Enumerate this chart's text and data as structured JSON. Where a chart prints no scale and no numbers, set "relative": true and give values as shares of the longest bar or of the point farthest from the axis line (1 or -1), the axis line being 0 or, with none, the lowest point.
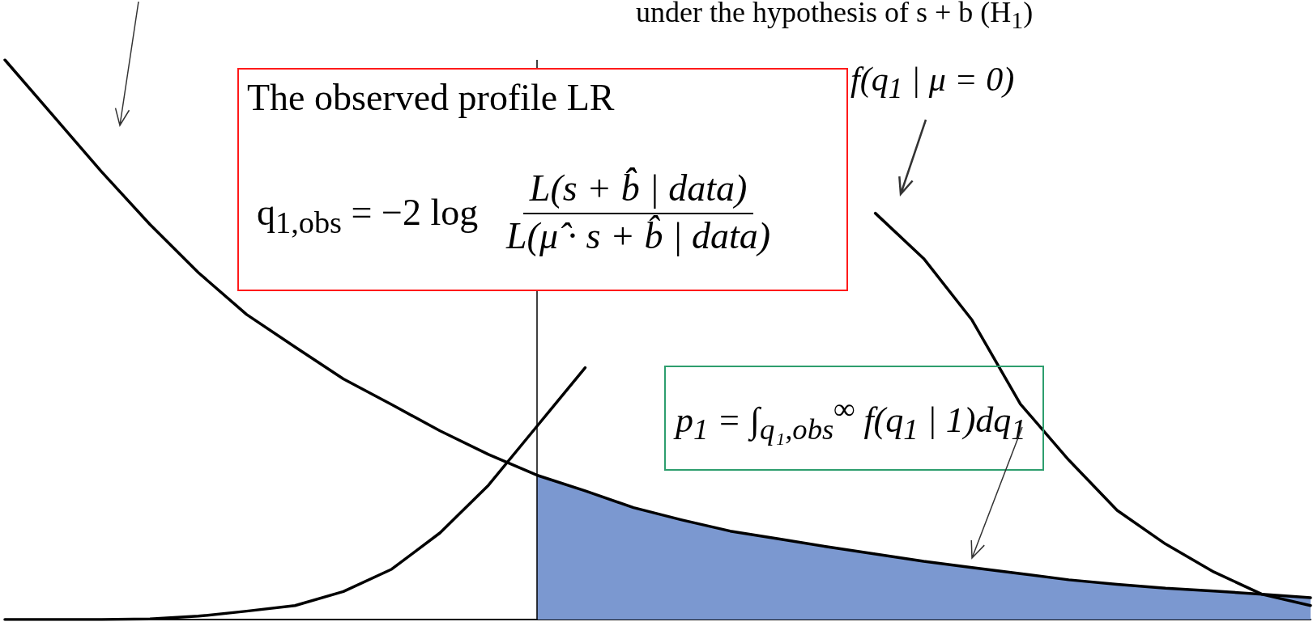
{
  "chart_data": {
    "type": "line",
    "relative": true,
    "grid": false,
    "marker": "none",
    "line_style": "solid",
    "categories": [
      null,
      null,
      null,
      null,
      null,
      null,
      null,
      null,
      null,
      null,
      null,
      null,
      null,
      null,
      null,
      null,
      null,
      null,
      null,
      null,
      null,
      null,
      null,
      null,
      null,
      null,
      null,
      null
    ],
    "series": [
      {
        "type": "area",
        "color": "#7b98d0",
        "values": [
          null,
          null,
          null,
          null,
          null,
          null,
          null,
          null,
          null,
          null,
          null,
          0.258,
          0.23,
          0.2,
          0.178,
          0.158,
          0.144,
          0.13,
          0.117,
          0.104,
          0.093,
          0.082,
          0.071,
          0.063,
          0.056,
          0.051,
          0.045,
          0.039
        ]
      },
      {
        "color": "#000000",
        "values": [
          1.0,
          0.9,
          0.8,
          0.706,
          0.62,
          0.545,
          0.487,
          0.43,
          0.384,
          0.337,
          0.295,
          0.258,
          0.23,
          0.2,
          0.178,
          0.158,
          0.144,
          0.13,
          0.117,
          0.104,
          0.093,
          0.082,
          0.071,
          0.063,
          0.056,
          0.051,
          0.045,
          0.039
        ]
      },
      {
        "color": "#000000",
        "values": [
          0.0,
          0.0,
          0.0,
          0.001,
          0.006,
          0.015,
          0.025,
          0.05,
          0.09,
          0.155,
          0.24,
          0.345,
          0.45,
          null,
          null,
          null,
          null,
          null,
          0.726,
          0.645,
          0.535,
          0.385,
          0.285,
          0.195,
          0.135,
          0.085,
          0.045,
          0.025
        ]
      }
    ],
    "ref_lines": [
      {
        "axis": "x",
        "color": "#000000"
      }
    ],
    "annotations": [
      "under the hypothesis of s + b (H$_{1}$)",
      "f(q$_{1}$ | μ = 0)",
      "The observed profile LR",
      "q$_{1,obs}$ = −2 log",
      "L(s + b̂̂ | data)",
      "L(μ̂ · s + b̂ | data)",
      "p$_{1}$ = ∫$_{q₁,obs}$$^{∞}$ f(q$_{1}$ | 1)dq$_{1}$"
    ]
  }
}
